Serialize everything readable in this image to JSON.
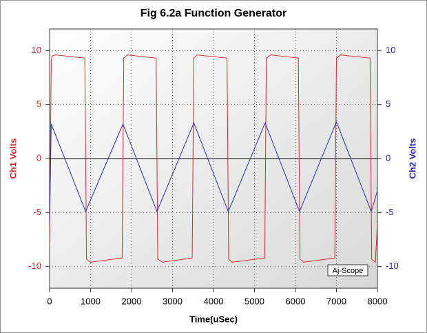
{
  "chart_data": {
    "type": "line",
    "title": "Fig 6.2a Function Generator",
    "x_label": "Time(uSec)",
    "y_label": "Ch1 Volts",
    "y2_label": "Ch2 Volts",
    "annotation": "Aj-Scope",
    "xlim": [
      0,
      8000
    ],
    "xticks": [
      0,
      1000,
      2000,
      3000,
      4000,
      5000,
      6000,
      7000,
      8000
    ],
    "ylim": [
      -12,
      12
    ],
    "yticks": [
      -10,
      -5,
      0,
      5,
      10
    ],
    "y2lim": [
      -12,
      12
    ],
    "y2ticks": [
      -10,
      -5,
      0,
      5,
      10
    ],
    "grid": true,
    "series": [
      {
        "name": "Ch1",
        "color": "#d42a2a",
        "x": [
          0,
          40,
          60,
          150,
          860,
          880,
          900,
          1000,
          1770,
          1790,
          1810,
          1900,
          2600,
          2620,
          2640,
          2750,
          3480,
          3500,
          3520,
          3600,
          4330,
          4350,
          4370,
          4450,
          5250,
          5270,
          5290,
          5400,
          6070,
          6090,
          6110,
          6200,
          6960,
          6980,
          7000,
          7100,
          7820,
          7840,
          7860,
          7950,
          8000
        ],
        "values": [
          -8,
          9.0,
          9.5,
          9.6,
          9.3,
          0,
          -9.3,
          -9.6,
          -9.2,
          0,
          9.3,
          9.6,
          9.3,
          0,
          -9.3,
          -9.6,
          -9.2,
          0,
          9.3,
          9.6,
          9.3,
          0,
          -9.3,
          -9.6,
          -9.2,
          0,
          9.3,
          9.6,
          9.3,
          0,
          -9.3,
          -9.6,
          -9.2,
          0,
          9.3,
          9.6,
          9.3,
          0,
          -9.3,
          -9.6,
          -6
        ]
      },
      {
        "name": "Ch2",
        "color": "#2a2aa8",
        "axis": "y2",
        "x": [
          0,
          40,
          880,
          1790,
          2620,
          3520,
          4360,
          5260,
          6100,
          7000,
          7850,
          8000
        ],
        "values": [
          -6,
          3.2,
          -4.9,
          3.2,
          -4.9,
          3.3,
          -4.9,
          3.3,
          -4.9,
          3.4,
          -4.9,
          -3.0
        ]
      }
    ]
  }
}
